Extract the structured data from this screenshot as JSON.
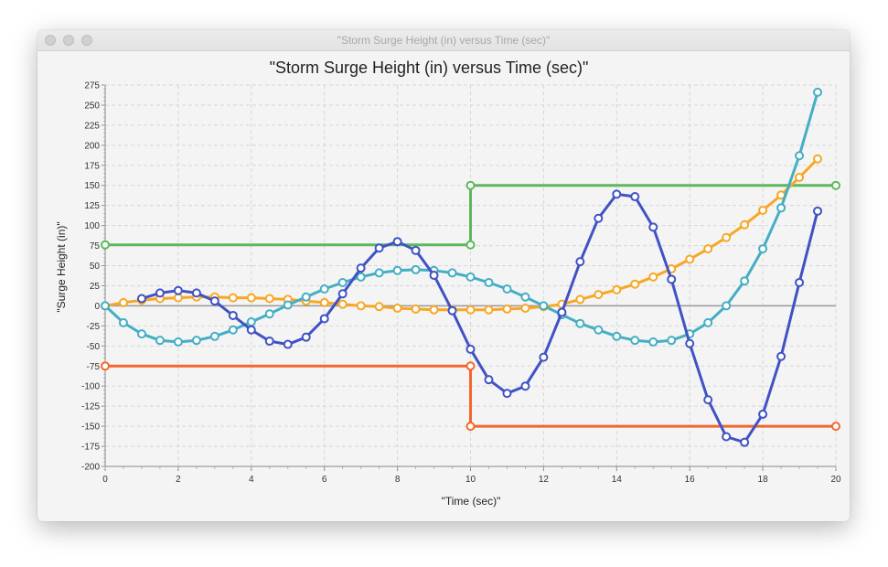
{
  "window": {
    "title": "\"Storm Surge Height (in) versus Time (sec)\""
  },
  "chart_data": {
    "type": "line",
    "title": "\"Storm Surge Height (in) versus Time (sec)\"",
    "xlabel": "\"Time (sec)\"",
    "ylabel": "\"Surge Height (in)\"",
    "xlim": [
      0,
      20
    ],
    "ylim": [
      -200,
      275
    ],
    "x_ticks": [
      0,
      2,
      4,
      6,
      8,
      10,
      12,
      14,
      16,
      18,
      20
    ],
    "y_ticks": [
      275,
      250,
      225,
      200,
      175,
      150,
      125,
      100,
      75,
      50,
      25,
      0,
      -25,
      -50,
      -75,
      -100,
      -125,
      -150,
      -175,
      -200
    ],
    "grid": true,
    "legend": "none",
    "zero_line": true,
    "series": [
      {
        "color": "#5cb85c",
        "step": true,
        "x": [
          0,
          10,
          10,
          20
        ],
        "y": [
          76,
          76,
          150,
          150
        ]
      },
      {
        "color": "#f2672e",
        "step": true,
        "x": [
          0,
          10,
          10,
          20
        ],
        "y": [
          -75,
          -75,
          -150,
          -150
        ]
      },
      {
        "color": "#f7a725",
        "x": [
          0,
          0.5,
          1,
          1.5,
          2,
          2.5,
          3,
          3.5,
          4,
          4.5,
          5,
          5.5,
          6,
          6.5,
          7,
          7.5,
          8,
          8.5,
          9,
          9.5,
          10,
          10.5,
          11,
          11.5,
          12,
          12.5,
          13,
          13.5,
          14,
          14.5,
          15,
          15.5,
          16,
          16.5,
          17,
          17.5,
          18,
          18.5,
          19,
          19.5
        ],
        "y": [
          0,
          4,
          7,
          9,
          10,
          11,
          11,
          10,
          10,
          9,
          8,
          6,
          4,
          2,
          0,
          -1,
          -3,
          -4,
          -5,
          -5,
          -5,
          -5,
          -4,
          -3,
          -1,
          2,
          8,
          14,
          20,
          27,
          36,
          46,
          58,
          71,
          85,
          101,
          119,
          138,
          160,
          183
        ]
      },
      {
        "color": "#44aec4",
        "x": [
          0,
          0.5,
          1,
          1.5,
          2,
          2.5,
          3,
          3.5,
          4,
          4.5,
          5,
          5.5,
          6,
          6.5,
          7,
          7.5,
          8,
          8.5,
          9,
          9.5,
          10,
          10.5,
          11,
          11.5,
          12,
          12.5,
          13,
          13.5,
          14,
          14.5,
          15,
          15.5,
          16,
          16.5,
          17,
          17.5,
          18,
          18.5,
          19,
          19.5
        ],
        "y": [
          0,
          -21,
          -35,
          -43,
          -45,
          -43,
          -38,
          -30,
          -20,
          -10,
          1,
          11,
          21,
          29,
          36,
          41,
          44,
          45,
          44,
          41,
          36,
          29,
          21,
          11,
          0,
          -11,
          -22,
          -30,
          -38,
          -43,
          -45,
          -43,
          -35,
          -21,
          0,
          31,
          71,
          122,
          187,
          266
        ]
      },
      {
        "color": "#4052c4",
        "x": [
          1,
          1.5,
          2,
          2.5,
          3,
          3.5,
          4,
          4.5,
          5,
          5.5,
          6,
          6.5,
          7,
          7.5,
          8,
          8.5,
          9,
          9.5,
          10,
          10.5,
          11,
          11.5,
          12,
          12.5,
          13,
          13.5,
          14,
          14.5,
          15,
          15.5,
          16,
          16.5,
          17,
          17.5,
          18,
          18.5,
          19,
          19.5
        ],
        "y": [
          9,
          16,
          19,
          16,
          6,
          -12,
          -30,
          -44,
          -48,
          -39,
          -16,
          15,
          47,
          72,
          80,
          69,
          38,
          -6,
          -54,
          -92,
          -109,
          -100,
          -64,
          -8,
          55,
          109,
          139,
          136,
          98,
          33,
          -47,
          -117,
          -163,
          -170,
          -135,
          -63,
          29,
          118
        ]
      }
    ]
  }
}
